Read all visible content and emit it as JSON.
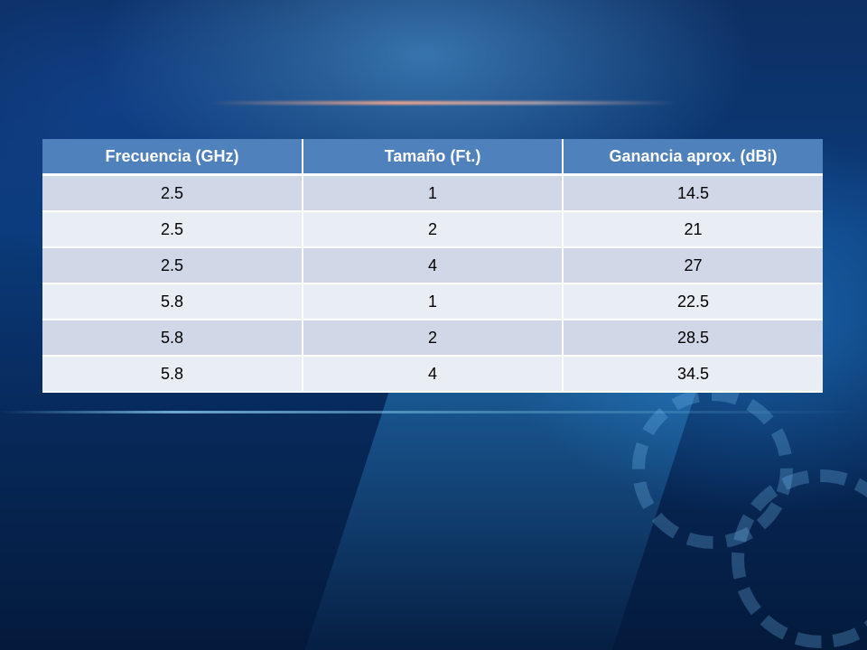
{
  "colors": {
    "header_bg": "#4f81bd",
    "row_odd_bg": "#d0d8e8",
    "row_even_bg": "#e9edf4",
    "background": "#0b3b7a"
  },
  "table": {
    "headers": [
      "Frecuencia (GHz)",
      "Tamaño (Ft.)",
      "Ganancia aprox. (dBi)"
    ],
    "rows": [
      [
        "2.5",
        "1",
        "14.5"
      ],
      [
        "2.5",
        "2",
        "21"
      ],
      [
        "2.5",
        "4",
        "27"
      ],
      [
        "5.8",
        "1",
        "22.5"
      ],
      [
        "5.8",
        "2",
        "28.5"
      ],
      [
        "5.8",
        "4",
        "34.5"
      ]
    ]
  }
}
